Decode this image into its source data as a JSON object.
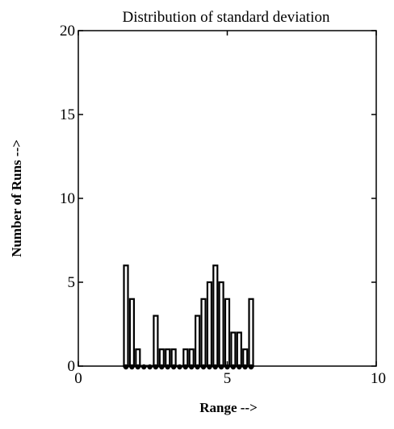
{
  "chart_data": {
    "type": "bar",
    "title": "Distribution of standard deviation",
    "xlabel": "Range -->",
    "ylabel": "Number of Runs -->",
    "xlim": [
      0,
      10
    ],
    "ylim": [
      0,
      20
    ],
    "xticks": [
      0,
      5,
      10
    ],
    "yticks": [
      0,
      5,
      10,
      15,
      20
    ],
    "grid": false,
    "bar_style": "outline",
    "bin_width": 0.2,
    "bin_centers": [
      1.6,
      1.8,
      2.0,
      2.2,
      2.4,
      2.6,
      2.8,
      3.0,
      3.2,
      3.4,
      3.6,
      3.8,
      4.0,
      4.2,
      4.4,
      4.6,
      4.8,
      5.0,
      5.2,
      5.4,
      5.6,
      5.8
    ],
    "values": [
      6,
      4,
      1,
      0,
      0,
      3,
      1,
      1,
      1,
      0,
      1,
      1,
      3,
      4,
      5,
      6,
      5,
      4,
      2,
      2,
      1,
      4
    ]
  }
}
